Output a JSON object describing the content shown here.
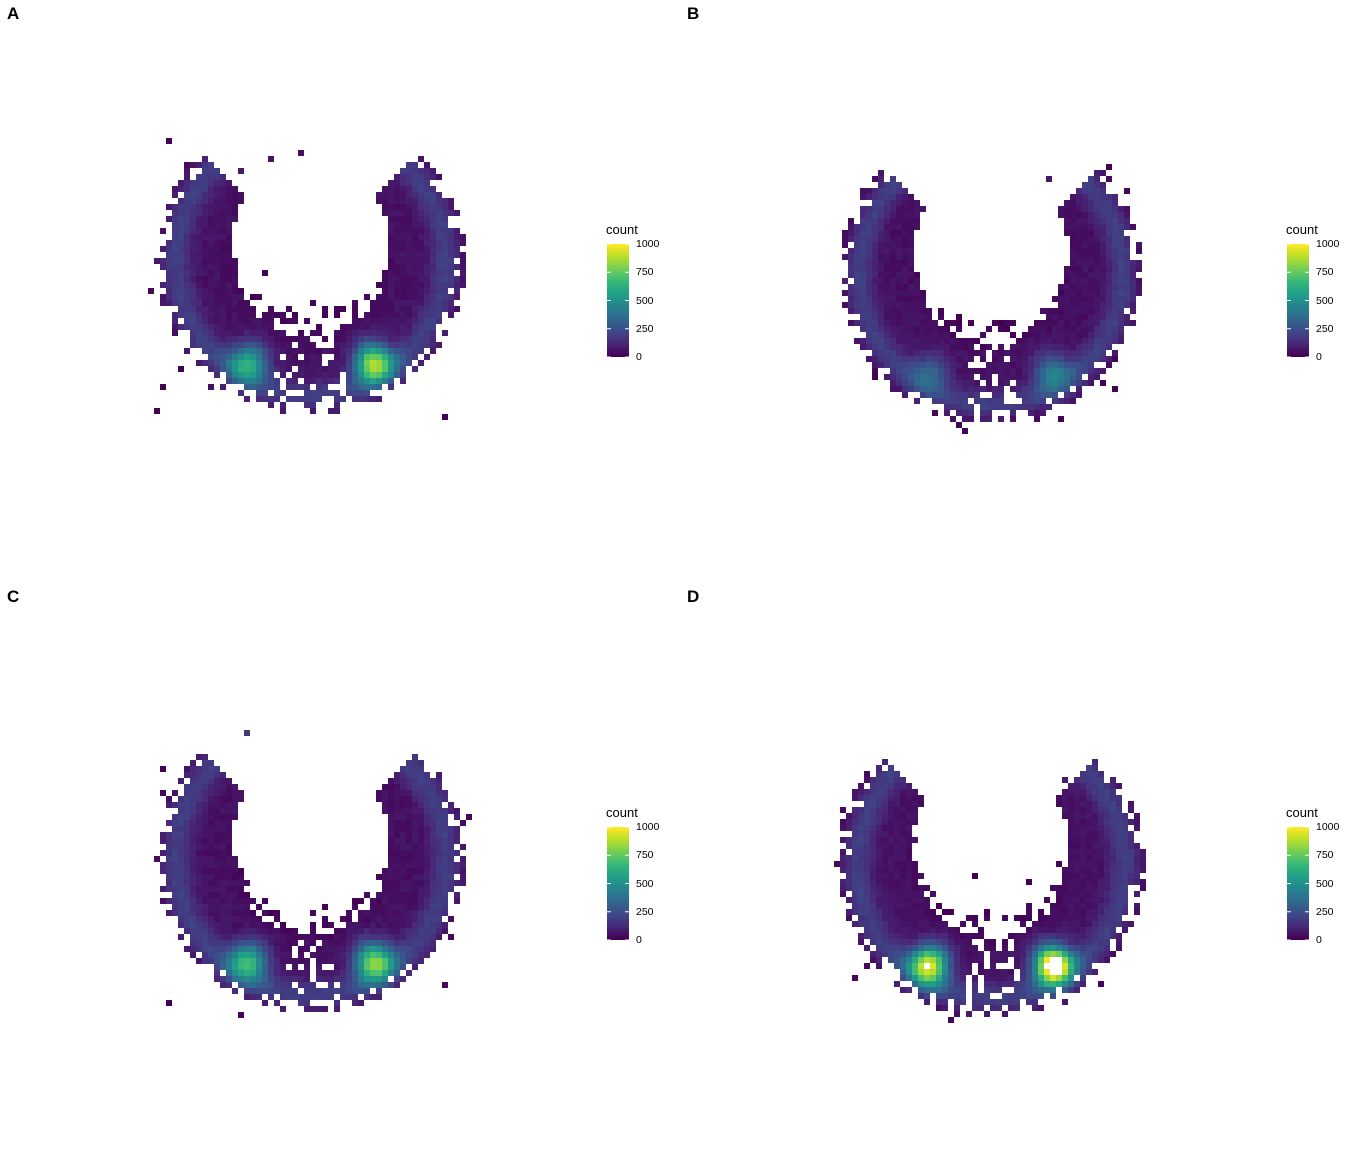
{
  "chart_data": [
    {
      "panel": "A",
      "type": "heatmap",
      "title": "",
      "xlabel": "",
      "ylabel": "",
      "grid": false,
      "legend": {
        "title": "count",
        "placement": "right",
        "ticks": [
          0,
          250,
          500,
          750,
          1000
        ],
        "range": [
          0,
          1000
        ]
      },
      "colormap": "viridis",
      "shape": "horseshoe arc opening upward",
      "hotspots": [
        {
          "side": "left",
          "count": 550
        },
        {
          "side": "right",
          "count": 800
        }
      ]
    },
    {
      "panel": "B",
      "type": "heatmap",
      "title": "",
      "xlabel": "",
      "ylabel": "",
      "grid": false,
      "legend": {
        "title": "count",
        "placement": "right",
        "ticks": [
          0,
          250,
          500,
          750,
          1000
        ],
        "range": [
          0,
          1000
        ]
      },
      "colormap": "viridis",
      "shape": "horseshoe arc opening upward",
      "hotspots": [
        {
          "side": "left",
          "count": 250
        },
        {
          "side": "right",
          "count": 350
        }
      ]
    },
    {
      "panel": "C",
      "type": "heatmap",
      "title": "",
      "xlabel": "",
      "ylabel": "",
      "grid": false,
      "legend": {
        "title": "count",
        "placement": "right",
        "ticks": [
          0,
          250,
          500,
          750,
          1000
        ],
        "range": [
          0,
          1000
        ]
      },
      "colormap": "viridis",
      "shape": "horseshoe arc opening upward",
      "hotspots": [
        {
          "side": "left",
          "count": 600
        },
        {
          "side": "right",
          "count": 750
        }
      ]
    },
    {
      "panel": "D",
      "type": "heatmap",
      "title": "",
      "xlabel": "",
      "ylabel": "",
      "grid": false,
      "legend": {
        "title": "count",
        "placement": "right",
        "ticks": [
          0,
          250,
          500,
          750,
          1000
        ],
        "range": [
          0,
          1000
        ]
      },
      "colormap": "viridis",
      "shape": "horseshoe arc opening upward",
      "hotspots": [
        {
          "side": "left",
          "count": 900
        },
        {
          "side": "right",
          "count": 1100
        }
      ],
      "note_out_of_range_color": "#ffffff"
    }
  ],
  "colors": {
    "viridis": [
      "#440154",
      "#482878",
      "#3e4989",
      "#31688e",
      "#26828e",
      "#1f9e89",
      "#35b779",
      "#6ece58",
      "#b5de2b",
      "#fde725"
    ]
  }
}
